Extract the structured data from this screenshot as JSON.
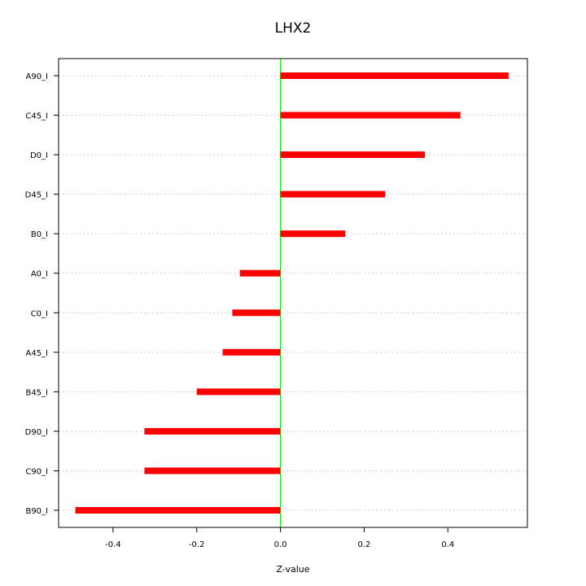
{
  "chart_data": {
    "type": "bar",
    "orientation": "horizontal",
    "title": "LHX2",
    "xlabel": "Z-value",
    "ylabel": "",
    "xlim": [
      -0.53,
      0.59
    ],
    "xticks": [
      -0.4,
      -0.2,
      0.0,
      0.2,
      0.4
    ],
    "xtick_labels": [
      "-0.4",
      "-0.2",
      "0.0",
      "0.2",
      "0.4"
    ],
    "grid": true,
    "reference_line": {
      "x": 0.0,
      "color": "#00ee00"
    },
    "bar_color": "#ff0000",
    "categories": [
      "A90_I",
      "C45_I",
      "D0_I",
      "D45_I",
      "B0_I",
      "A0_I",
      "C0_I",
      "A45_I",
      "B45_I",
      "D90_I",
      "C90_I",
      "B90_I"
    ],
    "values": [
      0.545,
      0.43,
      0.345,
      0.25,
      0.155,
      -0.097,
      -0.115,
      -0.138,
      -0.2,
      -0.325,
      -0.325,
      -0.49
    ]
  }
}
